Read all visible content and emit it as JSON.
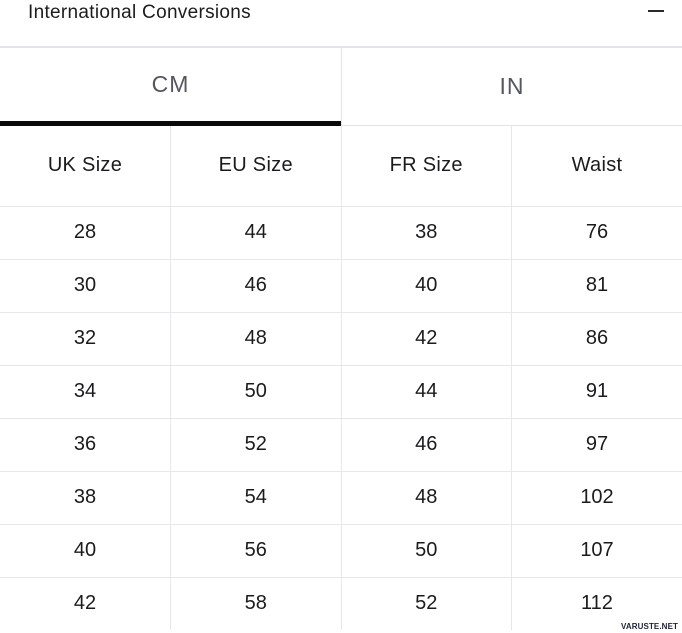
{
  "header": {
    "title": "International Conversions"
  },
  "tabs": [
    {
      "label": "CM",
      "active": true
    },
    {
      "label": "IN",
      "active": false
    }
  ],
  "table": {
    "columns": [
      "UK Size",
      "EU Size",
      "FR Size",
      "Waist"
    ],
    "rows": [
      [
        "28",
        "44",
        "38",
        "76"
      ],
      [
        "30",
        "46",
        "40",
        "81"
      ],
      [
        "32",
        "48",
        "42",
        "86"
      ],
      [
        "34",
        "50",
        "44",
        "91"
      ],
      [
        "36",
        "52",
        "46",
        "97"
      ],
      [
        "38",
        "54",
        "48",
        "102"
      ],
      [
        "40",
        "56",
        "50",
        "107"
      ],
      [
        "42",
        "58",
        "52",
        "112"
      ]
    ]
  },
  "watermark": "VARUSTE.NET",
  "colors": {
    "active_tab_underline": "#0a0a0a",
    "border": "#e7e7ea",
    "tab_text": "#54575e",
    "text": "#1b1b1d",
    "watermark": "#1d2335"
  }
}
